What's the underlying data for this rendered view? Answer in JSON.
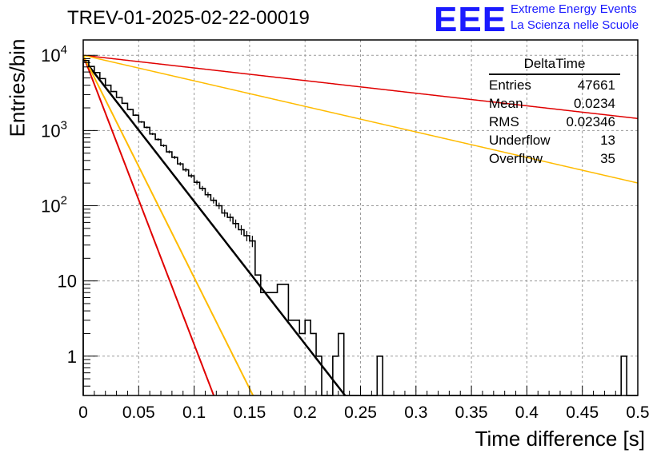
{
  "title": "TREV-01-2025-02-22-00019",
  "logo": {
    "mark": "EEE",
    "line1": "Extreme Energy Events",
    "line2": "La Scienza nelle Scuole",
    "color": "#1a1aff"
  },
  "stats_box": {
    "title": "DeltaTime",
    "rows": [
      {
        "label": "Entries",
        "value": "47661"
      },
      {
        "label": "Mean",
        "value": "0.0234"
      },
      {
        "label": "RMS",
        "value": "0.02346"
      },
      {
        "label": "Underflow",
        "value": "13"
      },
      {
        "label": "Overflow",
        "value": "35"
      }
    ]
  },
  "chart_data": {
    "type": "line",
    "xlabel": "Time difference [s]",
    "ylabel": "Entries/bin",
    "xlim": [
      0,
      0.5
    ],
    "ylim": [
      0.3,
      16000
    ],
    "yscale": "log",
    "grid": true,
    "x_ticks": [
      "0",
      "0.05",
      "0.1",
      "0.15",
      "0.2",
      "0.25",
      "0.3",
      "0.35",
      "0.4",
      "0.45",
      "0.5"
    ],
    "y_ticks": [
      {
        "value": 10000,
        "label": "10",
        "exp": "4"
      },
      {
        "value": 1000,
        "label": "10",
        "exp": "3"
      },
      {
        "value": 100,
        "label": "10",
        "exp": "2"
      },
      {
        "value": 10,
        "label": "10",
        "exp": ""
      },
      {
        "value": 1,
        "label": "1",
        "exp": ""
      }
    ],
    "histogram": {
      "bin_width": 0.005,
      "color": "#000000",
      "values": [
        8500,
        7100,
        5900,
        4900,
        4000,
        3300,
        2750,
        2300,
        1900,
        1600,
        1300,
        1100,
        900,
        760,
        630,
        520,
        440,
        360,
        300,
        250,
        205,
        170,
        140,
        118,
        100,
        80,
        70,
        58,
        48,
        40,
        34,
        12,
        7,
        7,
        7,
        9,
        9,
        3,
        3,
        2,
        3,
        2,
        1,
        0.3,
        0.3,
        1,
        2,
        0.3,
        0.3,
        0.3,
        0.3,
        0.3,
        0.3,
        1,
        0.3,
        0.3,
        0.3,
        0.3,
        0.3,
        0.3,
        0.3,
        0.3,
        0.3,
        0.3,
        0.3,
        0.3,
        0.3,
        0.3,
        0.3,
        0.3,
        0.3,
        0.3,
        0.3,
        0.3,
        0.3,
        0.3,
        0.3,
        0.3,
        0.3,
        0.3,
        0.3,
        0.3,
        0.3,
        0.3,
        0.3,
        0.3,
        0.3,
        0.3,
        0.3,
        0.3,
        0.3,
        0.3,
        0.3,
        0.3,
        0.3,
        0.3,
        0.3,
        1,
        0.3,
        0.3
      ]
    },
    "series": [
      {
        "color": "#000000",
        "y0": 9000,
        "tau": 0.0229,
        "width": 2.5
      },
      {
        "color": "#e00000",
        "y0": 10000,
        "tau": 0.0113,
        "width": 2
      },
      {
        "color": "#ffbb00",
        "y0": 10000,
        "tau": 0.0147,
        "width": 2
      },
      {
        "color": "#e00000",
        "y0": 10000,
        "tau": 0.2585,
        "width": 1.5
      },
      {
        "color": "#ffbb00",
        "y0": 10000,
        "tau": 0.1279,
        "width": 1.5
      }
    ]
  }
}
